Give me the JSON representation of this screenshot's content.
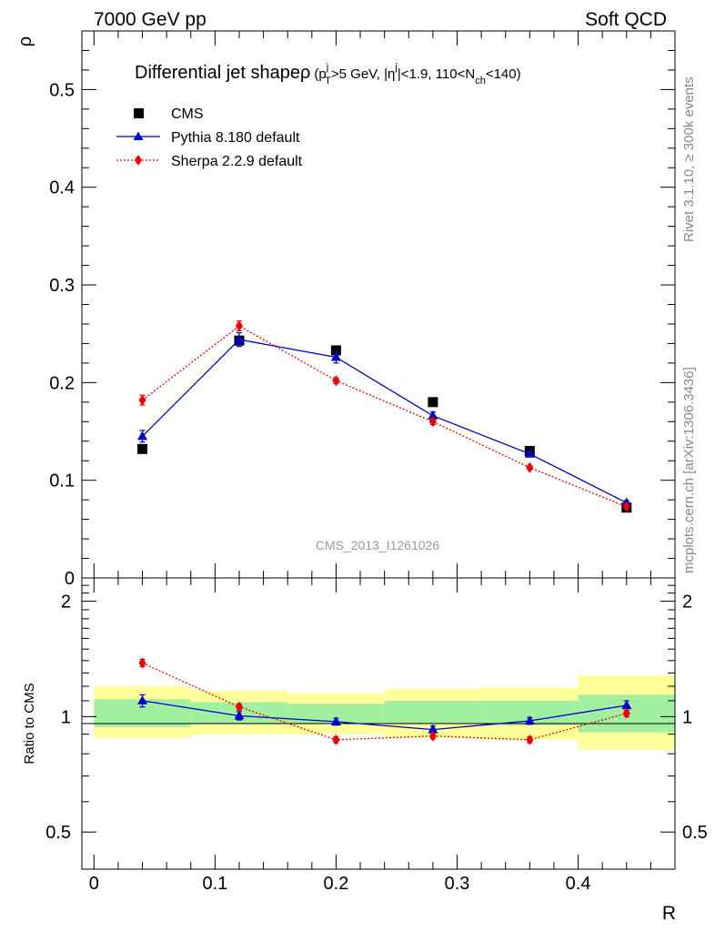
{
  "header": {
    "left_label": "7000 GeV pp",
    "right_label": "Soft QCD"
  },
  "side_labels": {
    "events": "Rivet 3.1.10, ≥ 300k events",
    "source": "mcplots.cern.ch [arXiv:1306.3436]"
  },
  "watermark": "CMS_2013_I1261026",
  "chart_data": [
    {
      "type": "scatter",
      "panel": "main",
      "title": "Differential jet shapeρ (p_T^j>5 GeV, |η^j|<1.9, 110<N_ch<140)",
      "title_parts": {
        "main": "Differential jet shape",
        "rho": "ρ",
        "open": "(p",
        "sup1": "j",
        "sub1": "T",
        "part2": ">5 GeV, |η",
        "sup2": "j",
        "part3": "|<1.9, 110<N",
        "sub3": "ch",
        "part4": "<140)"
      },
      "xlabel": "R",
      "ylabel": "ρ",
      "xlim": [
        -0.01,
        0.48
      ],
      "ylim": [
        0,
        0.56
      ],
      "x_ticks": [
        0,
        0.1,
        0.2,
        0.3,
        0.4
      ],
      "x_tick_labels": [
        "0",
        "0.1",
        "0.2",
        "0.3",
        "0.4"
      ],
      "y_ticks": [
        0,
        0.1,
        0.2,
        0.3,
        0.4,
        0.5
      ],
      "y_tick_labels": [
        "0",
        "0.1",
        "0.2",
        "0.3",
        "0.4",
        "0.5"
      ],
      "legend_position": "top-left",
      "series": [
        {
          "name": "CMS",
          "color": "#000000",
          "marker": "square",
          "line": "none",
          "x": [
            0.04,
            0.12,
            0.2,
            0.28,
            0.36,
            0.44
          ],
          "y": [
            0.132,
            0.243,
            0.233,
            0.18,
            0.13,
            0.072
          ],
          "err": [
            0.002,
            0.002,
            0.002,
            0.002,
            0.002,
            0.002
          ]
        },
        {
          "name": "Pythia 8.180 default",
          "color": "#0000cc",
          "marker": "triangle",
          "line": "solid",
          "x": [
            0.04,
            0.12,
            0.2,
            0.28,
            0.36,
            0.44
          ],
          "y": [
            0.145,
            0.244,
            0.226,
            0.166,
            0.127,
            0.077
          ],
          "err": [
            0.006,
            0.007,
            0.006,
            0.004,
            0.003,
            0.002
          ]
        },
        {
          "name": "Sherpa 2.2.9 default",
          "color": "#ee0000",
          "marker": "diamond",
          "line": "dotted",
          "x": [
            0.04,
            0.12,
            0.2,
            0.28,
            0.36,
            0.44
          ],
          "y": [
            0.182,
            0.258,
            0.202,
            0.16,
            0.113,
            0.073
          ],
          "err": [
            0.005,
            0.005,
            0.003,
            0.003,
            0.002,
            0.002
          ]
        }
      ]
    },
    {
      "type": "scatter",
      "panel": "ratio",
      "xlabel": "R",
      "ylabel": "Ratio to CMS",
      "xlim": [
        -0.01,
        0.48
      ],
      "ylim": [
        0.4,
        2.3
      ],
      "y_scale": "log",
      "x_ticks": [
        0,
        0.1,
        0.2,
        0.3,
        0.4
      ],
      "x_tick_labels": [
        "0",
        "0.1",
        "0.2",
        "0.3",
        "0.4"
      ],
      "y_ticks": [
        0.5,
        1,
        2
      ],
      "y_tick_labels": [
        "0.5",
        "1",
        "2"
      ],
      "reference_line": 1,
      "bands": {
        "bin_edges": [
          0.0,
          0.08,
          0.16,
          0.24,
          0.32,
          0.4,
          0.48
        ],
        "inner_color": "#a0f0a0",
        "outer_color": "#ffff99",
        "inner_low": [
          0.94,
          0.96,
          0.96,
          0.96,
          0.95,
          0.91
        ],
        "inner_high": [
          1.11,
          1.09,
          1.08,
          1.1,
          1.1,
          1.14
        ],
        "outer_low": [
          0.88,
          0.9,
          0.9,
          0.88,
          0.87,
          0.82
        ],
        "outer_high": [
          1.2,
          1.17,
          1.15,
          1.18,
          1.19,
          1.28
        ]
      },
      "series": [
        {
          "name": "Pythia 8.180 default",
          "color": "#0000cc",
          "marker": "triangle",
          "line": "solid",
          "x": [
            0.04,
            0.12,
            0.2,
            0.28,
            0.36,
            0.44
          ],
          "y": [
            1.1,
            1.005,
            0.97,
            0.925,
            0.975,
            1.07
          ],
          "err": [
            0.04,
            0.025,
            0.02,
            0.02,
            0.02,
            0.03
          ]
        },
        {
          "name": "Sherpa 2.2.9 default",
          "color": "#ee0000",
          "marker": "diamond",
          "line": "dotted",
          "x": [
            0.04,
            0.12,
            0.2,
            0.28,
            0.36,
            0.44
          ],
          "y": [
            1.38,
            1.06,
            0.87,
            0.89,
            0.87,
            1.02
          ],
          "err": [
            0.03,
            0.02,
            0.015,
            0.015,
            0.015,
            0.02
          ]
        }
      ]
    }
  ]
}
